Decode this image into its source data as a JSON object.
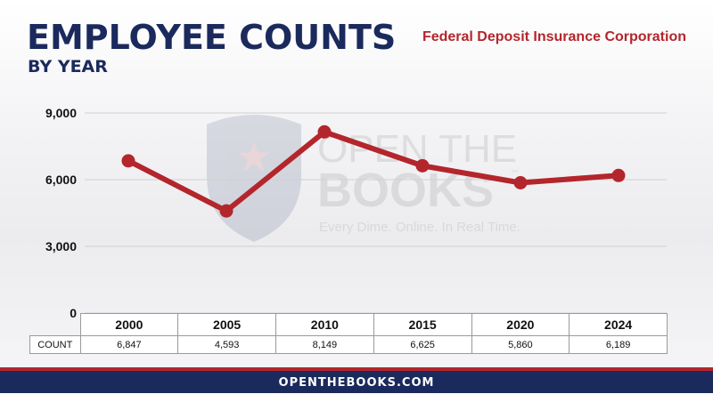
{
  "header": {
    "title": "EMPLOYEE COUNTS",
    "subtitle": "BY YEAR",
    "agency": "Federal Deposit Insurance Corporation"
  },
  "watermark": {
    "line1": "OPEN THE",
    "line2": "BOOKS",
    "tm": "™",
    "tagline": "Every Dime. Online. In Real Time."
  },
  "chart_data": {
    "type": "line",
    "x": [
      "2000",
      "2005",
      "2010",
      "2015",
      "2020",
      "2024"
    ],
    "values": [
      6847,
      4593,
      8149,
      6625,
      5860,
      6189
    ],
    "value_labels": [
      "6,847",
      "4,593",
      "8,149",
      "6,625",
      "5,860",
      "6,189"
    ],
    "yticks": [
      0,
      3000,
      6000,
      9000
    ],
    "ytick_labels": [
      "0",
      "3,000",
      "6,000",
      "9,000"
    ],
    "ylim": [
      0,
      9000
    ],
    "row_label": "COUNT",
    "line_color": "#b3262c",
    "grid": true
  },
  "colors": {
    "navy": "#1b2a5c",
    "red": "#b3262c"
  },
  "footer": {
    "site": "OPENTHEBOOKS.COM"
  }
}
